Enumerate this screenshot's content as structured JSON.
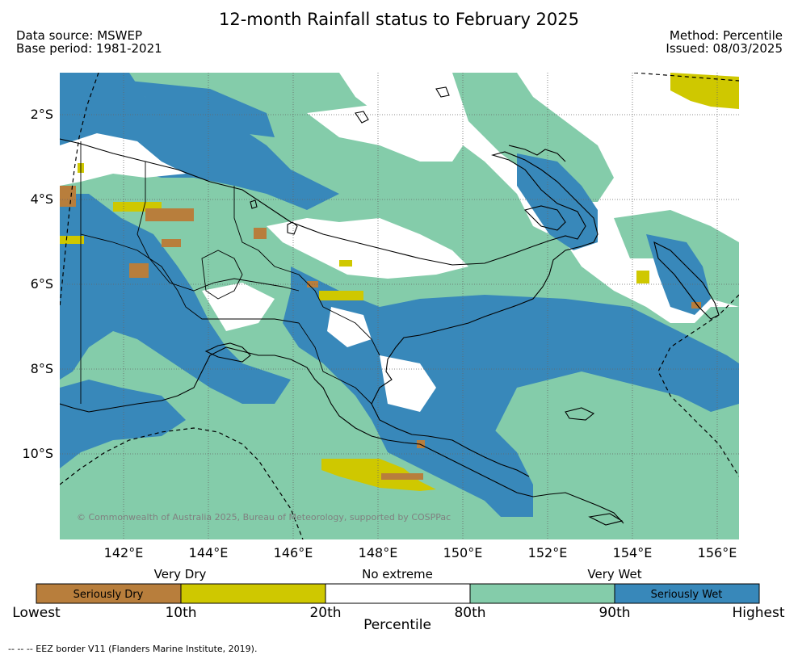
{
  "title": "12-month Rainfall status to February 2025",
  "meta": {
    "data_source": "Data source: MSWEP",
    "base_period": "Base period: 1981-2021",
    "method": "Method: Percentile",
    "issued": "Issued: 08/03/2025"
  },
  "axes": {
    "lat_labels": [
      "2°S",
      "4°S",
      "6°S",
      "8°S",
      "10°S"
    ],
    "lon_labels": [
      "142°E",
      "144°E",
      "146°E",
      "148°E",
      "150°E",
      "152°E",
      "154°E",
      "156°E"
    ]
  },
  "copyright": "© Commonwealth of Australia 2025, Bureau of Meteorology, supported by COSPPac",
  "legend": {
    "categories": {
      "very_dry": "Very Dry",
      "no_extreme": "No extreme",
      "very_wet": "Very Wet"
    },
    "boxes": {
      "seriously_dry": "Seriously Dry",
      "seriously_wet": "Seriously Wet"
    },
    "ticks": {
      "lowest": "Lowest",
      "p10": "10th",
      "p20": "20th",
      "p80": "80th",
      "p90": "90th",
      "highest": "Highest"
    },
    "axis_title": "Percentile",
    "colors": {
      "seriously_dry": "#b87e3c",
      "very_dry": "#cfc800",
      "no_extreme": "#ffffff",
      "very_wet": "#84ccaa",
      "seriously_wet": "#3888ba"
    }
  },
  "footer": "--  --  -- EEZ border V11 (Flanders Marine Institute, 2019)."
}
